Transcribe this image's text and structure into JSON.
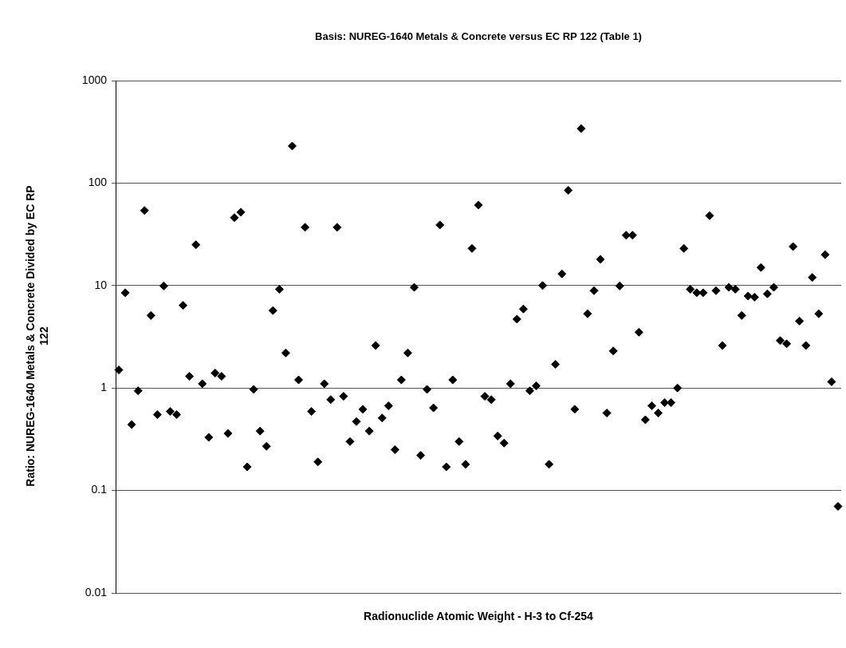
{
  "chart_data": {
    "type": "scatter",
    "title": "Basis: NUREG-1640 Metals & Concrete versus EC RP 122 (Table 1)",
    "xlabel": "Radionuclide Atomic Weight - H-3 to Cf-254",
    "ylabel": "Ratio: NUREG-1640 Metals & Concrete Divided by EC RP 122",
    "categories": [
      null,
      null,
      null,
      null,
      null,
      null,
      null,
      null,
      null,
      null,
      null,
      null,
      null,
      null,
      null,
      null,
      null,
      null,
      null,
      null,
      null,
      null,
      null,
      null,
      null,
      null,
      null,
      null,
      null,
      null,
      null,
      null,
      null,
      null,
      null,
      null,
      null,
      null,
      null,
      null,
      null,
      null,
      null,
      null,
      null,
      null,
      null,
      null,
      null,
      null,
      null,
      null,
      null,
      null,
      null,
      null,
      null,
      null,
      null,
      null,
      null,
      null,
      null,
      null,
      null,
      null,
      null,
      null,
      null,
      null,
      null,
      null,
      null,
      null,
      null,
      null,
      null,
      null,
      null,
      null,
      null,
      null,
      null,
      null,
      null,
      null,
      null,
      null,
      null,
      null,
      null,
      null,
      null,
      null,
      null,
      null,
      null,
      null,
      null,
      null,
      null,
      null,
      null,
      null,
      null,
      null,
      null,
      null,
      null,
      null,
      null,
      null,
      null
    ],
    "series": [
      {
        "color": "#000000",
        "values": [
          1.5,
          8.5,
          0.44,
          0.94,
          54,
          5.1,
          0.55,
          9.9,
          0.59,
          0.55,
          6.4,
          1.3,
          25,
          1.1,
          0.33,
          1.4,
          1.3,
          0.36,
          46,
          52,
          0.17,
          0.97,
          0.38,
          0.27,
          5.7,
          9.2,
          2.2,
          230,
          1.2,
          37,
          0.59,
          0.19,
          1.1,
          0.77,
          37,
          0.83,
          0.3,
          0.47,
          0.62,
          0.38,
          2.6,
          0.51,
          0.67,
          0.25,
          1.2,
          2.2,
          9.6,
          0.22,
          0.97,
          0.64,
          39,
          0.17,
          1.2,
          0.3,
          0.18,
          23,
          61,
          0.83,
          0.77,
          0.34,
          0.29,
          1.1,
          4.7,
          5.9,
          0.94,
          1.05,
          10,
          0.18,
          1.7,
          13,
          85,
          0.62,
          340,
          5.3,
          8.9,
          18,
          0.57,
          2.3,
          9.9,
          31,
          31,
          3.5,
          0.49,
          0.67,
          0.57,
          0.72,
          0.72,
          1.0,
          23,
          9.2,
          8.5,
          8.5,
          48,
          8.9,
          2.6,
          9.6,
          9.2,
          5.1,
          7.9,
          7.7,
          15,
          8.3,
          9.6,
          2.9,
          2.7,
          24,
          4.5,
          2.6,
          12,
          5.3,
          20,
          1.15,
          0.07
        ]
      }
    ],
    "ylim": [
      0.01,
      1000
    ],
    "yticks": [
      0.01,
      0.1,
      1,
      10,
      100,
      1000
    ],
    "log": true,
    "grid": "y",
    "marker": "diamond"
  }
}
